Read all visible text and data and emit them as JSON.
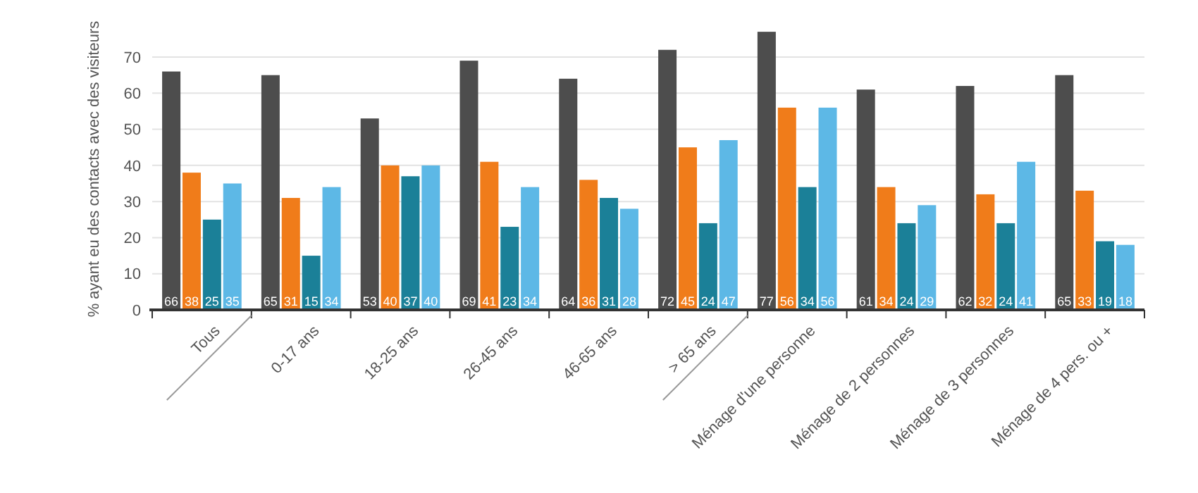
{
  "chart_data": {
    "type": "bar",
    "ylabel": "% ayant eu des contacts avec des visiteurs",
    "categories": [
      "Tous",
      "0-17 ans",
      "18-25 ans",
      "26-45 ans",
      "46-65 ans",
      "> 65 ans",
      "Ménage d'une personne",
      "Ménage de 2 personnes",
      "Ménage de 3 personnes",
      "Ménage de 4 pers. ou +"
    ],
    "series": [
      {
        "color": "#4d4d4d",
        "values": [
          66,
          65,
          53,
          69,
          64,
          72,
          77,
          61,
          62,
          65
        ]
      },
      {
        "color": "#f07c1a",
        "values": [
          38,
          31,
          40,
          41,
          36,
          45,
          56,
          34,
          32,
          33
        ]
      },
      {
        "color": "#1b8098",
        "values": [
          25,
          15,
          37,
          23,
          31,
          24,
          34,
          24,
          24,
          19
        ]
      },
      {
        "color": "#5db8e6",
        "values": [
          35,
          34,
          40,
          34,
          28,
          47,
          56,
          29,
          41,
          18
        ]
      }
    ],
    "ylim": [
      0,
      78
    ],
    "yticks": [
      0,
      10,
      20,
      30,
      40,
      50,
      60,
      70
    ],
    "grid": "y",
    "data_labels": true
  }
}
